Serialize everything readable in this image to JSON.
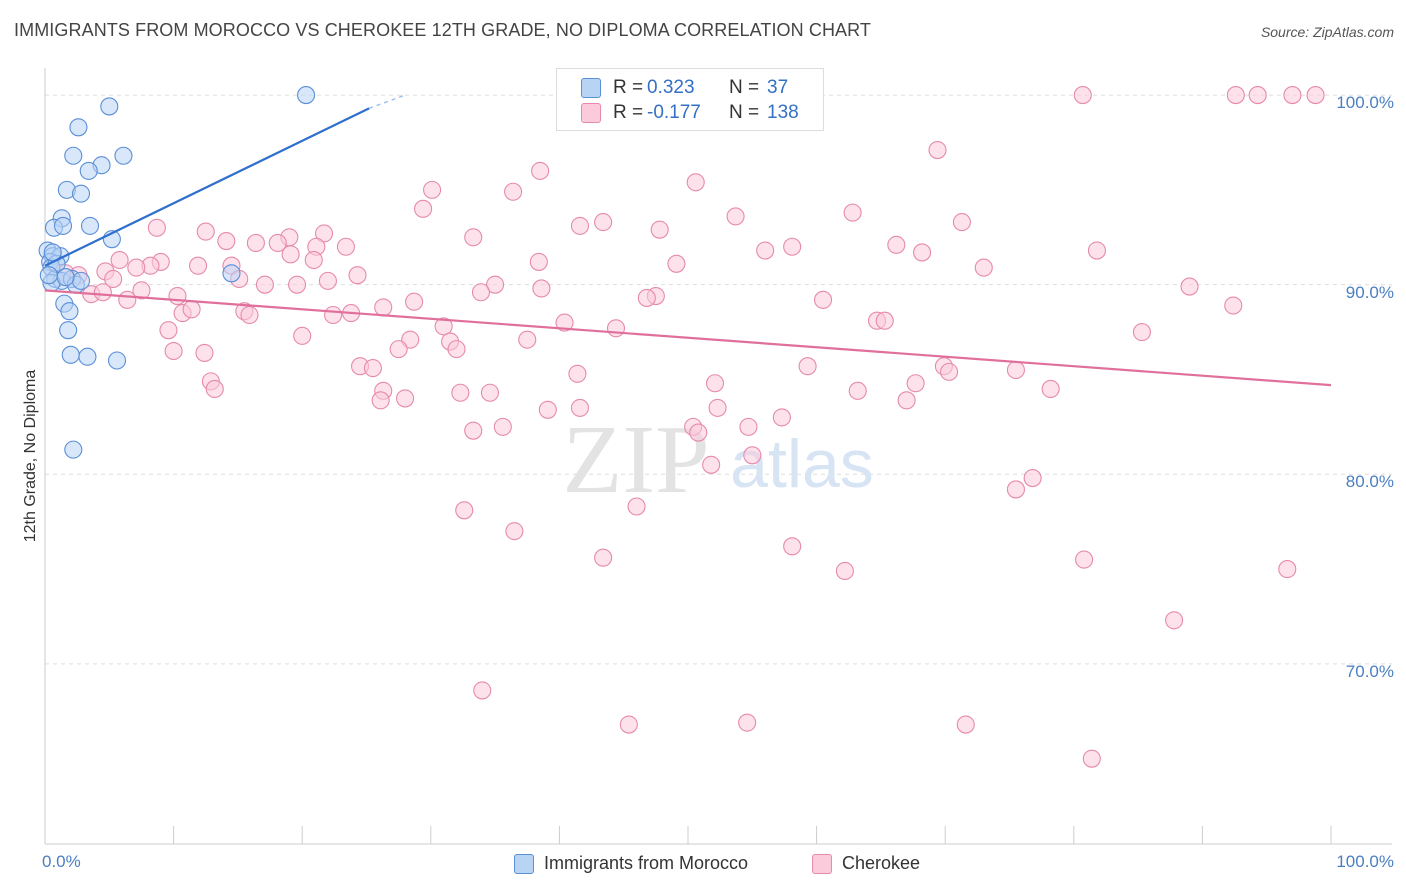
{
  "title": "IMMIGRANTS FROM MOROCCO VS CHEROKEE 12TH GRADE, NO DIPLOMA CORRELATION CHART",
  "source": "Source: ZipAtlas.com",
  "watermark": {
    "zip": "ZIP",
    "atlas": "atlas"
  },
  "legend": {
    "r_label": "R =",
    "n_label": "N =",
    "rows": [
      {
        "r": "0.323",
        "n": "37",
        "fill": "#b8d4f5",
        "stroke": "#5b8fd6"
      },
      {
        "r": "-0.177",
        "n": "138",
        "fill": "#fbcbdc",
        "stroke": "#e68aab"
      }
    ]
  },
  "chart_data": {
    "type": "scatter",
    "xlabel": "",
    "ylabel": "12th Grade, No Diploma",
    "xlim": [
      0,
      100
    ],
    "ylim": [
      60.5,
      100.9
    ],
    "x_ticks": [
      "0.0%",
      "100.0%"
    ],
    "y_ticks": [
      {
        "value": 100,
        "label": "100.0%"
      },
      {
        "value": 90,
        "label": "90.0%"
      },
      {
        "value": 80,
        "label": "80.0%"
      },
      {
        "value": 70,
        "label": "70.0%"
      }
    ],
    "grid": true,
    "legend_position": "bottom",
    "series": [
      {
        "name": "Immigrants from Morocco",
        "color": "#5b8fd6",
        "fill": "#b8d4f5",
        "trend": {
          "x": [
            0,
            25.2
          ],
          "y": [
            91.0,
            99.3
          ],
          "dash_to": [
            28,
            100.0
          ],
          "color": "#2f6fce"
        },
        "points": [
          [
            5,
            99.4
          ],
          [
            20.3,
            100.0
          ],
          [
            2.6,
            98.3
          ],
          [
            2.2,
            96.8
          ],
          [
            6.1,
            96.8
          ],
          [
            4.4,
            96.3
          ],
          [
            3.4,
            96.0
          ],
          [
            1.7,
            95.0
          ],
          [
            2.8,
            94.8
          ],
          [
            1.3,
            93.5
          ],
          [
            0.7,
            93.0
          ],
          [
            1.4,
            93.1
          ],
          [
            3.5,
            93.1
          ],
          [
            5.2,
            92.4
          ],
          [
            0.2,
            91.8
          ],
          [
            0.6,
            91.5
          ],
          [
            1.2,
            91.5
          ],
          [
            0.4,
            91.2
          ],
          [
            0.5,
            90.9
          ],
          [
            0.8,
            90.3
          ],
          [
            1.3,
            90.2
          ],
          [
            0.5,
            90.1
          ],
          [
            2.1,
            90.3
          ],
          [
            2.4,
            90.0
          ],
          [
            2.8,
            90.2
          ],
          [
            14.5,
            90.6
          ],
          [
            1.5,
            89.0
          ],
          [
            1.9,
            88.6
          ],
          [
            1.8,
            87.6
          ],
          [
            2.0,
            86.3
          ],
          [
            3.3,
            86.2
          ],
          [
            5.6,
            86.0
          ],
          [
            2.2,
            81.3
          ],
          [
            0.9,
            91.1
          ],
          [
            0.6,
            91.7
          ],
          [
            1.6,
            90.4
          ],
          [
            0.3,
            90.5
          ]
        ]
      },
      {
        "name": "Cherokee",
        "color": "#e68aab",
        "fill": "#fbcbdc",
        "trend": {
          "x": [
            0,
            100
          ],
          "y": [
            89.7,
            84.7
          ],
          "color": "#e0709b"
        },
        "points": [
          [
            48.5,
            100.0
          ],
          [
            54.3,
            100.0
          ],
          [
            80.7,
            100.0
          ],
          [
            92.6,
            100.0
          ],
          [
            94.3,
            100.0
          ],
          [
            97.0,
            100.0
          ],
          [
            98.8,
            100.0
          ],
          [
            69.4,
            97.1
          ],
          [
            38.5,
            96.0
          ],
          [
            50.6,
            95.4
          ],
          [
            30.1,
            95.0
          ],
          [
            36.4,
            94.9
          ],
          [
            29.4,
            94.0
          ],
          [
            53.7,
            93.6
          ],
          [
            43.4,
            93.3
          ],
          [
            71.3,
            93.3
          ],
          [
            41.6,
            93.1
          ],
          [
            47.8,
            92.9
          ],
          [
            8.7,
            93.0
          ],
          [
            12.5,
            92.8
          ],
          [
            19.0,
            92.5
          ],
          [
            21.7,
            92.7
          ],
          [
            33.3,
            92.5
          ],
          [
            14.1,
            92.3
          ],
          [
            16.4,
            92.2
          ],
          [
            18.1,
            92.2
          ],
          [
            21.1,
            92.0
          ],
          [
            23.4,
            92.0
          ],
          [
            58.1,
            92.0
          ],
          [
            66.2,
            92.1
          ],
          [
            68.2,
            91.7
          ],
          [
            19.1,
            91.6
          ],
          [
            20.9,
            91.3
          ],
          [
            5.8,
            91.3
          ],
          [
            9.0,
            91.2
          ],
          [
            11.9,
            91.0
          ],
          [
            14.5,
            91.0
          ],
          [
            8.2,
            91.0
          ],
          [
            7.1,
            90.9
          ],
          [
            38.4,
            91.2
          ],
          [
            49.1,
            91.1
          ],
          [
            4.7,
            90.7
          ],
          [
            1.6,
            90.6
          ],
          [
            2.6,
            90.5
          ],
          [
            5.3,
            90.3
          ],
          [
            15.1,
            90.3
          ],
          [
            17.1,
            90.0
          ],
          [
            19.6,
            90.0
          ],
          [
            22.0,
            90.2
          ],
          [
            24.3,
            90.5
          ],
          [
            35.0,
            90.0
          ],
          [
            38.6,
            89.8
          ],
          [
            3.6,
            89.5
          ],
          [
            4.5,
            89.6
          ],
          [
            7.5,
            89.7
          ],
          [
            10.3,
            89.4
          ],
          [
            33.9,
            89.6
          ],
          [
            47.5,
            89.4
          ],
          [
            6.4,
            89.2
          ],
          [
            26.3,
            88.8
          ],
          [
            28.7,
            89.1
          ],
          [
            10.7,
            88.5
          ],
          [
            11.4,
            88.7
          ],
          [
            15.5,
            88.6
          ],
          [
            15.9,
            88.4
          ],
          [
            22.4,
            88.4
          ],
          [
            23.8,
            88.5
          ],
          [
            46.8,
            89.3
          ],
          [
            60.5,
            89.2
          ],
          [
            40.4,
            88.0
          ],
          [
            64.7,
            88.1
          ],
          [
            65.3,
            88.1
          ],
          [
            9.6,
            87.6
          ],
          [
            20.0,
            87.3
          ],
          [
            28.4,
            87.1
          ],
          [
            31.0,
            87.8
          ],
          [
            31.5,
            87.0
          ],
          [
            37.5,
            87.1
          ],
          [
            44.4,
            87.7
          ],
          [
            10.0,
            86.5
          ],
          [
            12.4,
            86.4
          ],
          [
            27.5,
            86.6
          ],
          [
            32.0,
            86.6
          ],
          [
            24.5,
            85.7
          ],
          [
            25.5,
            85.6
          ],
          [
            41.4,
            85.3
          ],
          [
            59.3,
            85.7
          ],
          [
            69.9,
            85.7
          ],
          [
            70.3,
            85.4
          ],
          [
            75.5,
            85.5
          ],
          [
            12.9,
            84.9
          ],
          [
            13.2,
            84.5
          ],
          [
            52.1,
            84.8
          ],
          [
            63.2,
            84.4
          ],
          [
            67.7,
            84.8
          ],
          [
            78.2,
            84.5
          ],
          [
            26.3,
            84.4
          ],
          [
            28.0,
            84.0
          ],
          [
            32.3,
            84.3
          ],
          [
            34.6,
            84.3
          ],
          [
            26.1,
            83.9
          ],
          [
            39.1,
            83.4
          ],
          [
            41.6,
            83.5
          ],
          [
            52.3,
            83.5
          ],
          [
            57.3,
            83.0
          ],
          [
            67.0,
            83.9
          ],
          [
            33.3,
            82.3
          ],
          [
            35.6,
            82.5
          ],
          [
            50.4,
            82.5
          ],
          [
            54.7,
            82.5
          ],
          [
            50.8,
            82.2
          ],
          [
            55.0,
            81.0
          ],
          [
            51.8,
            80.5
          ],
          [
            76.8,
            79.8
          ],
          [
            75.5,
            79.2
          ],
          [
            32.6,
            78.1
          ],
          [
            46.0,
            78.3
          ],
          [
            36.5,
            77.0
          ],
          [
            58.1,
            76.2
          ],
          [
            43.4,
            75.6
          ],
          [
            80.8,
            75.5
          ],
          [
            62.2,
            74.9
          ],
          [
            96.6,
            75.0
          ],
          [
            87.8,
            72.3
          ],
          [
            34.0,
            68.6
          ],
          [
            45.4,
            66.8
          ],
          [
            54.6,
            66.9
          ],
          [
            71.6,
            66.8
          ],
          [
            81.4,
            65.0
          ],
          [
            89.0,
            89.9
          ],
          [
            92.4,
            88.9
          ],
          [
            56.0,
            91.8
          ],
          [
            85.3,
            87.5
          ],
          [
            73.0,
            90.9
          ],
          [
            81.8,
            91.8
          ],
          [
            62.8,
            93.8
          ]
        ]
      }
    ]
  }
}
